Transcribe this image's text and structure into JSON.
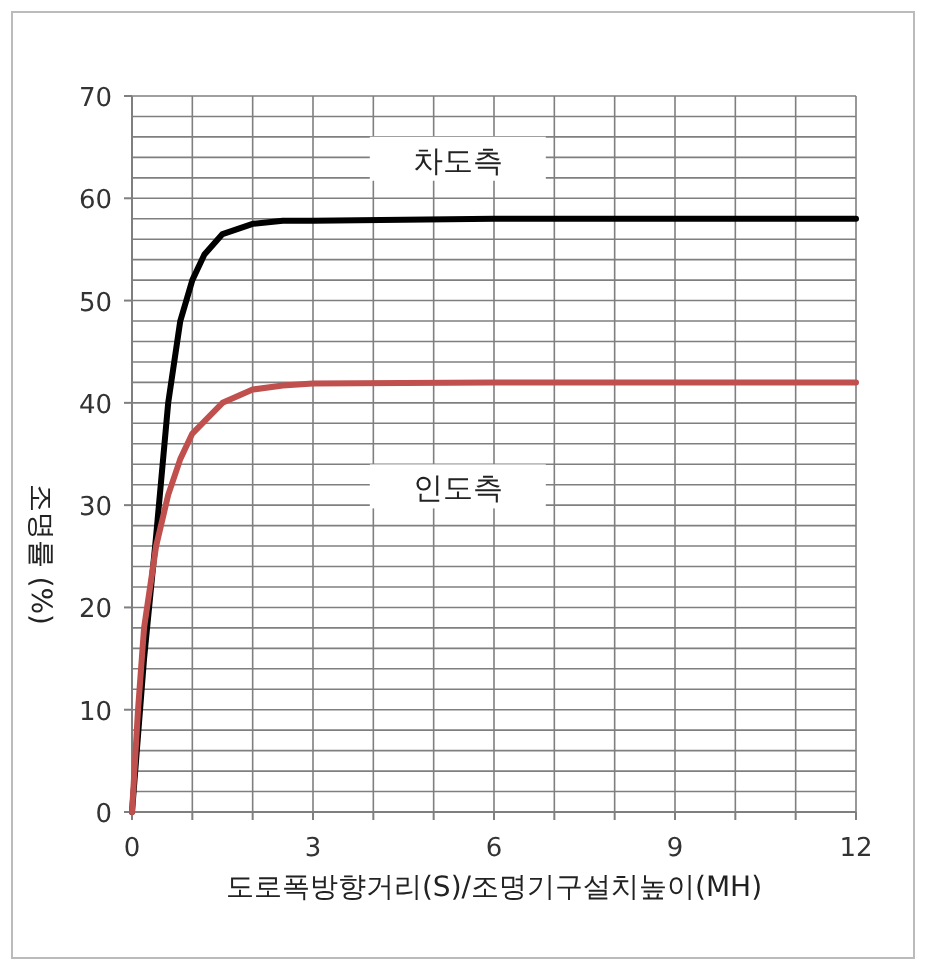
{
  "chart_data": {
    "type": "line",
    "xlabel": "도로폭방향거리(S)/조명기구설치높이(MH)",
    "ylabel": "조명률 (%)",
    "xlim": [
      0,
      12
    ],
    "ylim": [
      0,
      70
    ],
    "xticks": [
      0,
      {
        "value": 1,
        "label": null
      },
      {
        "value": 2,
        "label": null
      },
      3,
      {
        "value": 4,
        "label": null
      },
      {
        "value": 5,
        "label": null
      },
      6,
      {
        "value": 7,
        "label": null
      },
      {
        "value": 8,
        "label": null
      },
      9,
      {
        "value": 10,
        "label": null
      },
      {
        "value": 11,
        "label": null
      },
      12
    ],
    "yticks": [
      0,
      {
        "value": 2,
        "label": null
      },
      {
        "value": 4,
        "label": null
      },
      {
        "value": 6,
        "label": null
      },
      {
        "value": 8,
        "label": null
      },
      10,
      {
        "value": 12,
        "label": null
      },
      {
        "value": 14,
        "label": null
      },
      {
        "value": 16,
        "label": null
      },
      {
        "value": 18,
        "label": null
      },
      20,
      {
        "value": 22,
        "label": null
      },
      {
        "value": 24,
        "label": null
      },
      {
        "value": 26,
        "label": null
      },
      {
        "value": 28,
        "label": null
      },
      30,
      {
        "value": 32,
        "label": null
      },
      {
        "value": 34,
        "label": null
      },
      {
        "value": 36,
        "label": null
      },
      {
        "value": 38,
        "label": null
      },
      40,
      {
        "value": 42,
        "label": null
      },
      {
        "value": 44,
        "label": null
      },
      {
        "value": 46,
        "label": null
      },
      {
        "value": 48,
        "label": null
      },
      50,
      {
        "value": 52,
        "label": null
      },
      {
        "value": 54,
        "label": null
      },
      {
        "value": 56,
        "label": null
      },
      {
        "value": 58,
        "label": null
      },
      60,
      {
        "value": 62,
        "label": null
      },
      {
        "value": 64,
        "label": null
      },
      {
        "value": 66,
        "label": null
      },
      {
        "value": 68,
        "label": null
      },
      70
    ],
    "grid": true,
    "line_style": "solid",
    "series": [
      {
        "name": "차도측",
        "color": "#000000",
        "x": [
          0,
          0.2,
          0.4,
          0.6,
          0.8,
          1.0,
          1.2,
          1.5,
          2,
          2.5,
          3,
          6,
          12
        ],
        "values": [
          0,
          15,
          27,
          40,
          48,
          52,
          54.5,
          56.5,
          57.5,
          57.8,
          57.8,
          58,
          58
        ]
      },
      {
        "name": "인도측",
        "color": "#c0504d",
        "x": [
          0,
          0.1,
          0.2,
          0.4,
          0.6,
          0.8,
          1,
          1.5,
          2,
          2.5,
          3,
          6,
          12
        ],
        "values": [
          0,
          10,
          18,
          26,
          31,
          34.5,
          37,
          40,
          41.3,
          41.7,
          41.9,
          42,
          42
        ]
      }
    ]
  }
}
